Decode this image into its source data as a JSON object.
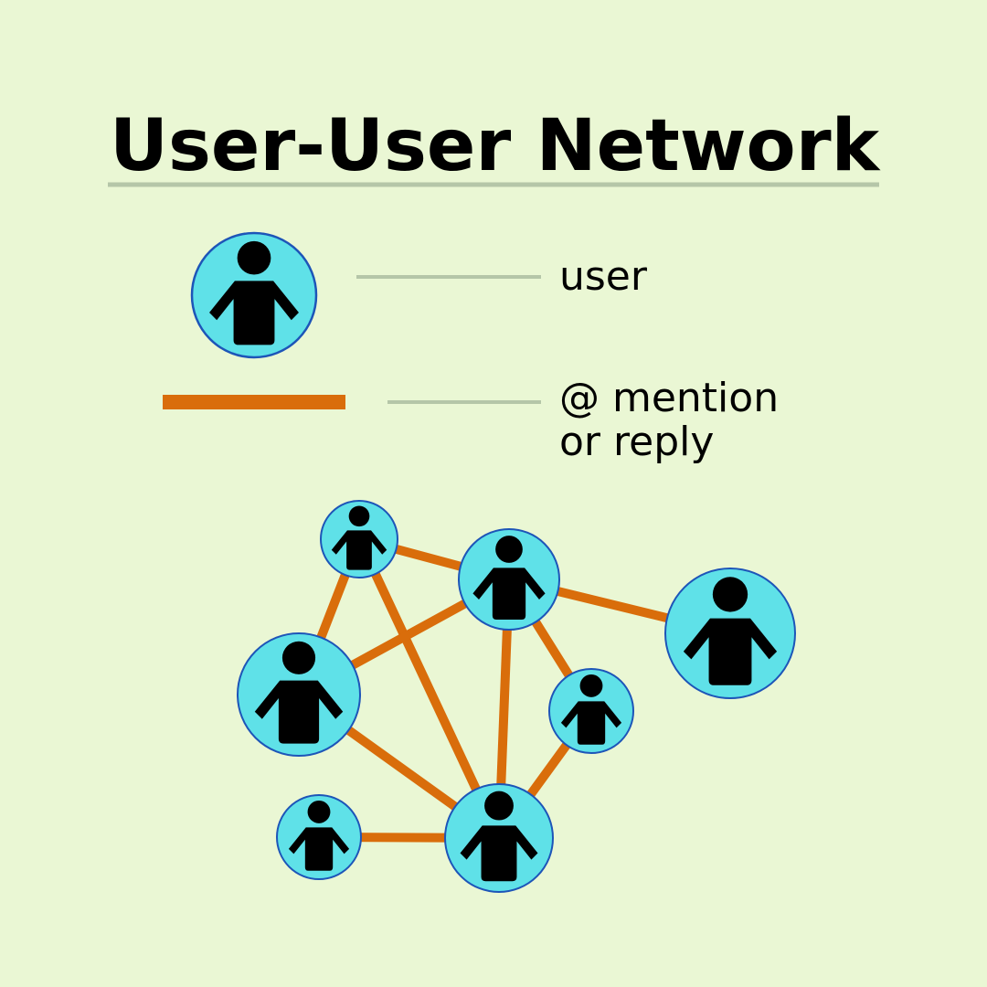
{
  "title": "User-User Network",
  "colors": {
    "background": "#eaf7d4",
    "node_fill": "#5fe1e8",
    "node_stroke": "#1d55b8",
    "edge": "#d96d0b",
    "connector": "#b5c6a8",
    "figure": "#000000"
  },
  "legend": {
    "user": {
      "symbol": "person-node-icon",
      "label": "user"
    },
    "mention": {
      "symbol": "orange-edge-line",
      "label_line1": "@ mention",
      "label_line2": "or reply"
    }
  },
  "network": {
    "nodes": [
      {
        "id": "n1",
        "icon": "person-icon"
      },
      {
        "id": "n2",
        "icon": "person-icon"
      },
      {
        "id": "n3",
        "icon": "person-icon"
      },
      {
        "id": "n4",
        "icon": "person-icon"
      },
      {
        "id": "n5",
        "icon": "person-icon"
      },
      {
        "id": "n6",
        "icon": "person-icon"
      },
      {
        "id": "n7",
        "icon": "person-icon"
      }
    ],
    "edges": [
      {
        "from": "n1",
        "to": "n2"
      },
      {
        "from": "n1",
        "to": "n4"
      },
      {
        "from": "n1",
        "to": "n6"
      },
      {
        "from": "n2",
        "to": "n3"
      },
      {
        "from": "n2",
        "to": "n4"
      },
      {
        "from": "n2",
        "to": "n5"
      },
      {
        "from": "n2",
        "to": "n6"
      },
      {
        "from": "n4",
        "to": "n6"
      },
      {
        "from": "n5",
        "to": "n6"
      },
      {
        "from": "n7",
        "to": "n6"
      }
    ]
  }
}
